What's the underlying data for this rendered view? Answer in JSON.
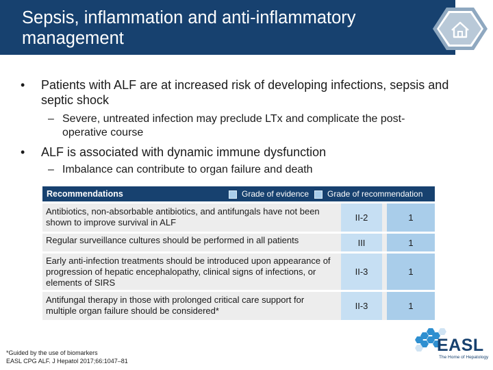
{
  "title": "Sepsis, inflammation and anti-inflammatory management",
  "home_icon": "home-icon",
  "bullets": [
    {
      "text": "Patients with ALF are at increased risk of developing infections, sepsis and septic shock",
      "sub": [
        "Severe, untreated infection may preclude LTx and complicate the post-operative course"
      ]
    },
    {
      "text": "ALF is associated with dynamic immune dysfunction",
      "sub": [
        "Imbalance can contribute to organ failure and death"
      ]
    }
  ],
  "table": {
    "header": "Recommendations",
    "legend_grade_evidence": "Grade of evidence",
    "legend_grade_recommendation": "Grade of recommendation",
    "rows": [
      {
        "text": "Antibiotics, non-absorbable antibiotics, and antifungals have not been shown to improve survival in ALF",
        "grade": "II-2",
        "rec": "1"
      },
      {
        "text": "Regular surveillance cultures should be performed in all patients",
        "grade": "III",
        "rec": "1"
      },
      {
        "text": "Early anti-infection treatments should be introduced upon appearance of progression of hepatic encephalopathy, clinical signs of infections, or elements of SIRS",
        "grade": "II-3",
        "rec": "1"
      },
      {
        "text": "Antifungal therapy in those with prolonged critical care support for multiple organ failure should be considered*",
        "grade": "II-3",
        "rec": "1"
      }
    ]
  },
  "footnote": {
    "line1": "*Guided by the use of biomarkers",
    "line2": "EASL CPG ALF. J Hepatol 2017;66:1047–81"
  },
  "logo": {
    "name": "EASL",
    "tagline": "The Home of Hepatology"
  },
  "colors": {
    "navy": "#17416f",
    "light_blue": "#c6dff3",
    "mid_blue": "#a9cdea",
    "row_gray": "#ededed"
  }
}
